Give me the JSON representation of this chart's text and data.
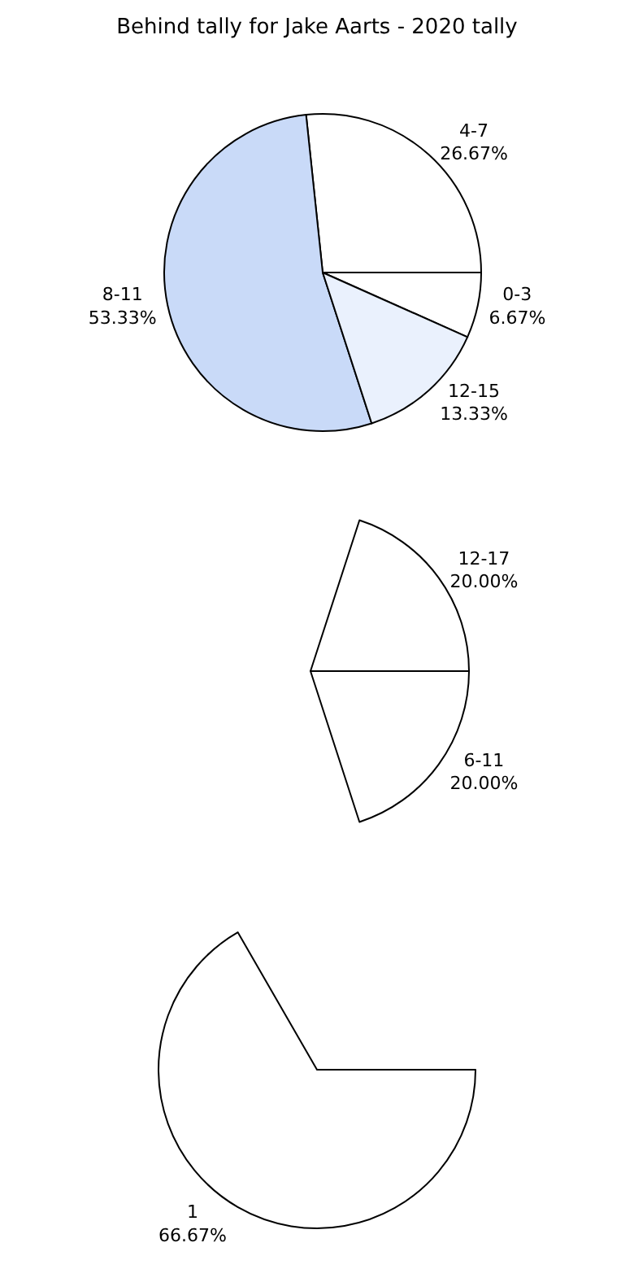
{
  "chart_data": [
    {
      "type": "pie",
      "title": "Behind tally for Jake Aarts - 2020 tally",
      "categories": [
        "0-3",
        "4-7",
        "8-11",
        "12-15"
      ],
      "values": [
        6.67,
        26.67,
        53.33,
        13.33
      ],
      "value_labels": [
        "6.67%",
        "26.67%",
        "53.33%",
        "13.33%"
      ],
      "colors": [
        "#ffffff",
        "#ffffff",
        "#c9daf8",
        "#eaf1fd"
      ]
    },
    {
      "type": "pie",
      "categories": [
        "6-11",
        "12-17"
      ],
      "values": [
        20,
        20
      ],
      "value_labels": [
        "20.00%",
        "20.00%"
      ],
      "colors": [
        "#ffffff",
        "#ffffff"
      ]
    },
    {
      "type": "pie",
      "categories": [
        "1"
      ],
      "values": [
        66.67
      ],
      "value_labels": [
        "66.67%"
      ],
      "colors": [
        "#ffffff"
      ]
    }
  ]
}
